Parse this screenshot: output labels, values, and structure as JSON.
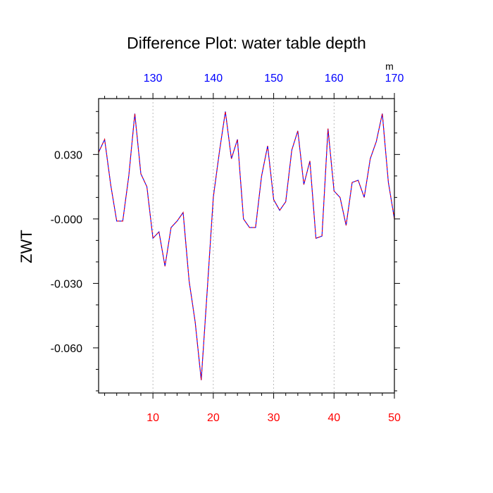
{
  "chart_data": {
    "type": "line",
    "title": "Difference Plot: water table depth",
    "ylabel": "ZWT",
    "xlabel": "",
    "top_axis_unit": "m",
    "x_bottom_ticks": [
      "10",
      "20",
      "30",
      "40",
      "50"
    ],
    "x_top_ticks": [
      "130",
      "140",
      "150",
      "160",
      "170"
    ],
    "y_ticks": [
      "0.030",
      "-0.000",
      "-0.030",
      "-0.060"
    ],
    "xlim": [
      1,
      50
    ],
    "ylim": [
      -0.081,
      0.056
    ],
    "grid": "vertical dashed lines at bottom-axis major ticks",
    "colors": {
      "line_primary": "#0000ff",
      "line_dash": "#ff0000",
      "bottom_tick_labels": "#ff0000",
      "top_tick_labels": "#0000ff",
      "grid": "#aaaaaa"
    },
    "x": [
      1,
      2,
      3,
      4,
      5,
      6,
      7,
      8,
      9,
      10,
      11,
      12,
      13,
      14,
      15,
      16,
      17,
      18,
      19,
      20,
      21,
      22,
      23,
      24,
      25,
      26,
      27,
      28,
      29,
      30,
      31,
      32,
      33,
      34,
      35,
      36,
      37,
      38,
      39,
      40,
      41,
      42,
      43,
      44,
      45,
      46,
      47,
      48,
      49,
      50
    ],
    "series": [
      {
        "values": [
          0.031,
          0.037,
          0.016,
          -0.001,
          -0.001,
          0.02,
          0.049,
          0.021,
          0.015,
          -0.009,
          -0.006,
          -0.022,
          -0.004,
          -0.001,
          0.003,
          -0.029,
          -0.048,
          -0.075,
          -0.033,
          0.01,
          0.031,
          0.05,
          0.028,
          0.037,
          0.0,
          -0.004,
          -0.004,
          0.02,
          0.034,
          0.009,
          0.004,
          0.008,
          0.032,
          0.041,
          0.016,
          0.027,
          -0.009,
          -0.008,
          0.042,
          0.013,
          0.01,
          -0.003,
          0.017,
          0.018,
          0.01,
          0.028,
          0.036,
          0.049,
          0.017,
          0.0
        ]
      }
    ]
  }
}
